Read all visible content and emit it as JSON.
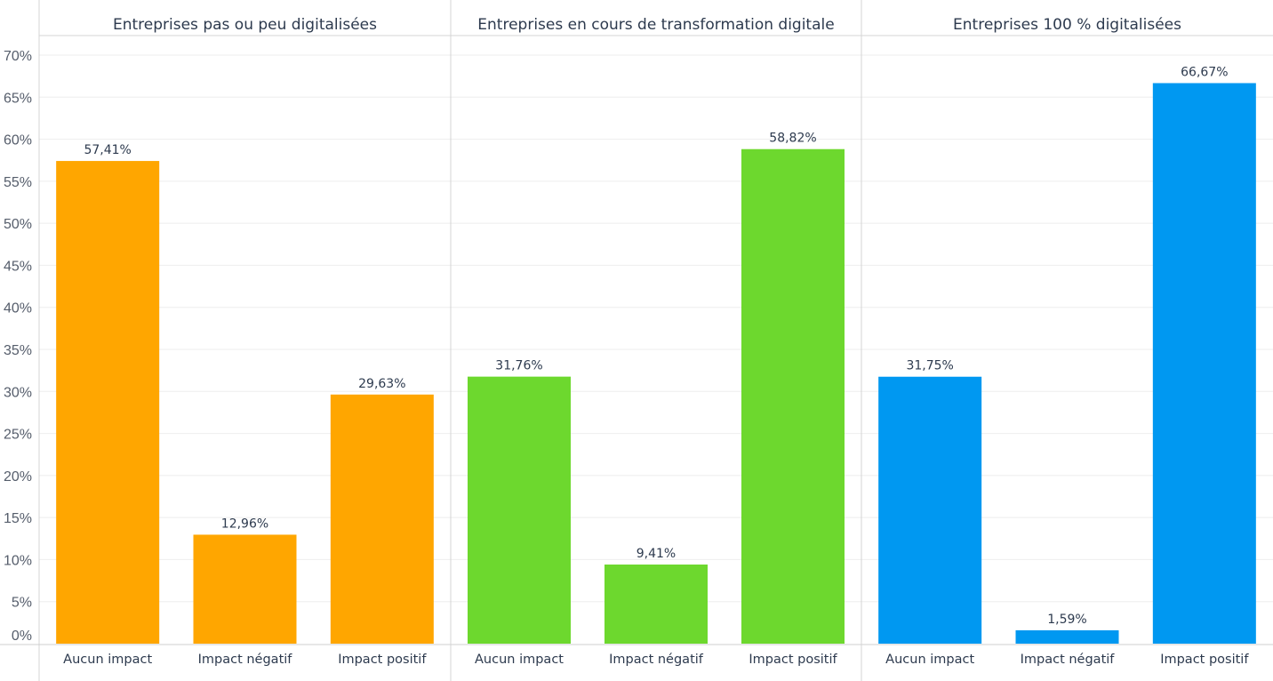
{
  "chart_data": {
    "type": "bar",
    "ylim": [
      0,
      70
    ],
    "y_ticks": [
      "0%",
      "5%",
      "10%",
      "15%",
      "20%",
      "25%",
      "30%",
      "35%",
      "40%",
      "45%",
      "50%",
      "55%",
      "60%",
      "65%",
      "70%"
    ],
    "grid": true,
    "categories": [
      "Aucun impact",
      "Impact négatif",
      "Impact positif"
    ],
    "panels": [
      {
        "title": "Entreprises pas ou peu digitalisées",
        "color": "#FFA600",
        "values": [
          57.41,
          12.96,
          29.63
        ],
        "labels": [
          "57,41%",
          "12,96%",
          "29,63%"
        ]
      },
      {
        "title": "Entreprises en cours de transformation digitale",
        "color": "#6DD82E",
        "values": [
          31.76,
          9.41,
          58.82
        ],
        "labels": [
          "31,76%",
          "9,41%",
          "58,82%"
        ]
      },
      {
        "title": "Entreprises 100 % digitalisées",
        "color": "#0098F1",
        "values": [
          31.75,
          1.59,
          66.67
        ],
        "labels": [
          "31,75%",
          "1,59%",
          "66,67%"
        ]
      }
    ]
  }
}
